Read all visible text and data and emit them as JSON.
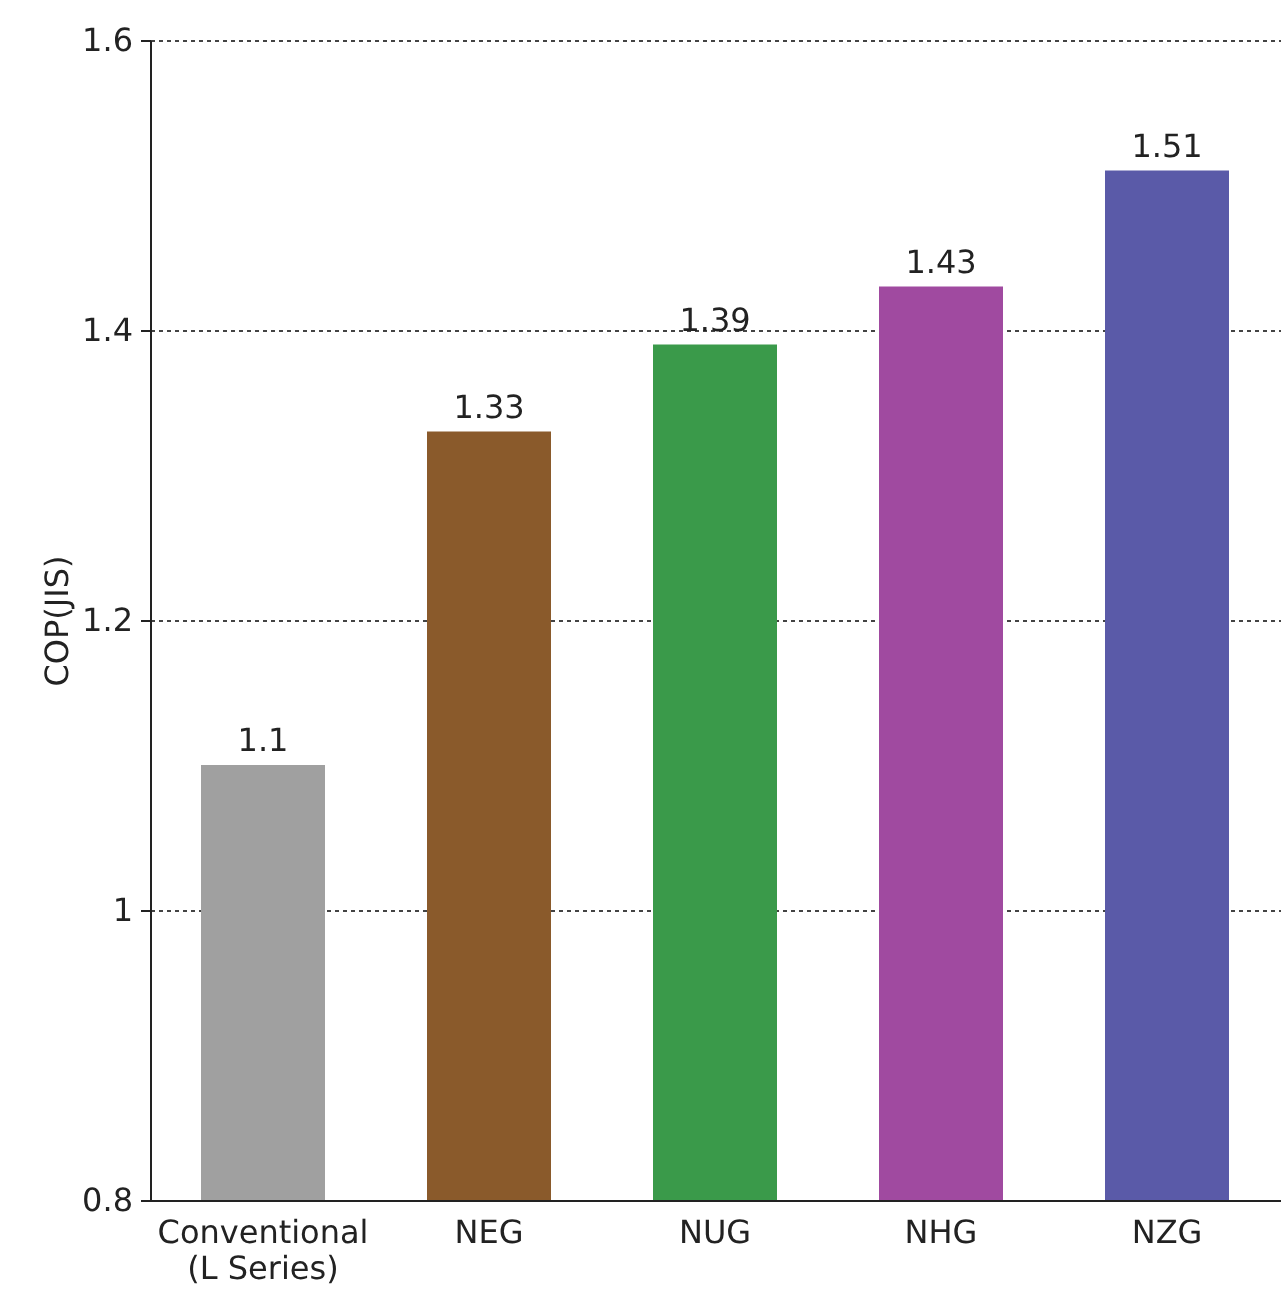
{
  "chart_data": {
    "type": "bar",
    "ylabel": "COP(JIS)",
    "categories": [
      "Conventional\n(L Series)",
      "NEG",
      "NUG",
      "NHG",
      "NZG"
    ],
    "values": [
      1.1,
      1.33,
      1.39,
      1.43,
      1.51
    ],
    "data_labels": true,
    "colors": [
      "#a0a0a0",
      "#8a5a2b",
      "#3a9a4a",
      "#a04aa0",
      "#5a5aa8"
    ],
    "ylim": [
      0.8,
      1.6
    ],
    "yticks": [
      0.8,
      1,
      1.2,
      1.4,
      1.6
    ],
    "grid": "y"
  }
}
